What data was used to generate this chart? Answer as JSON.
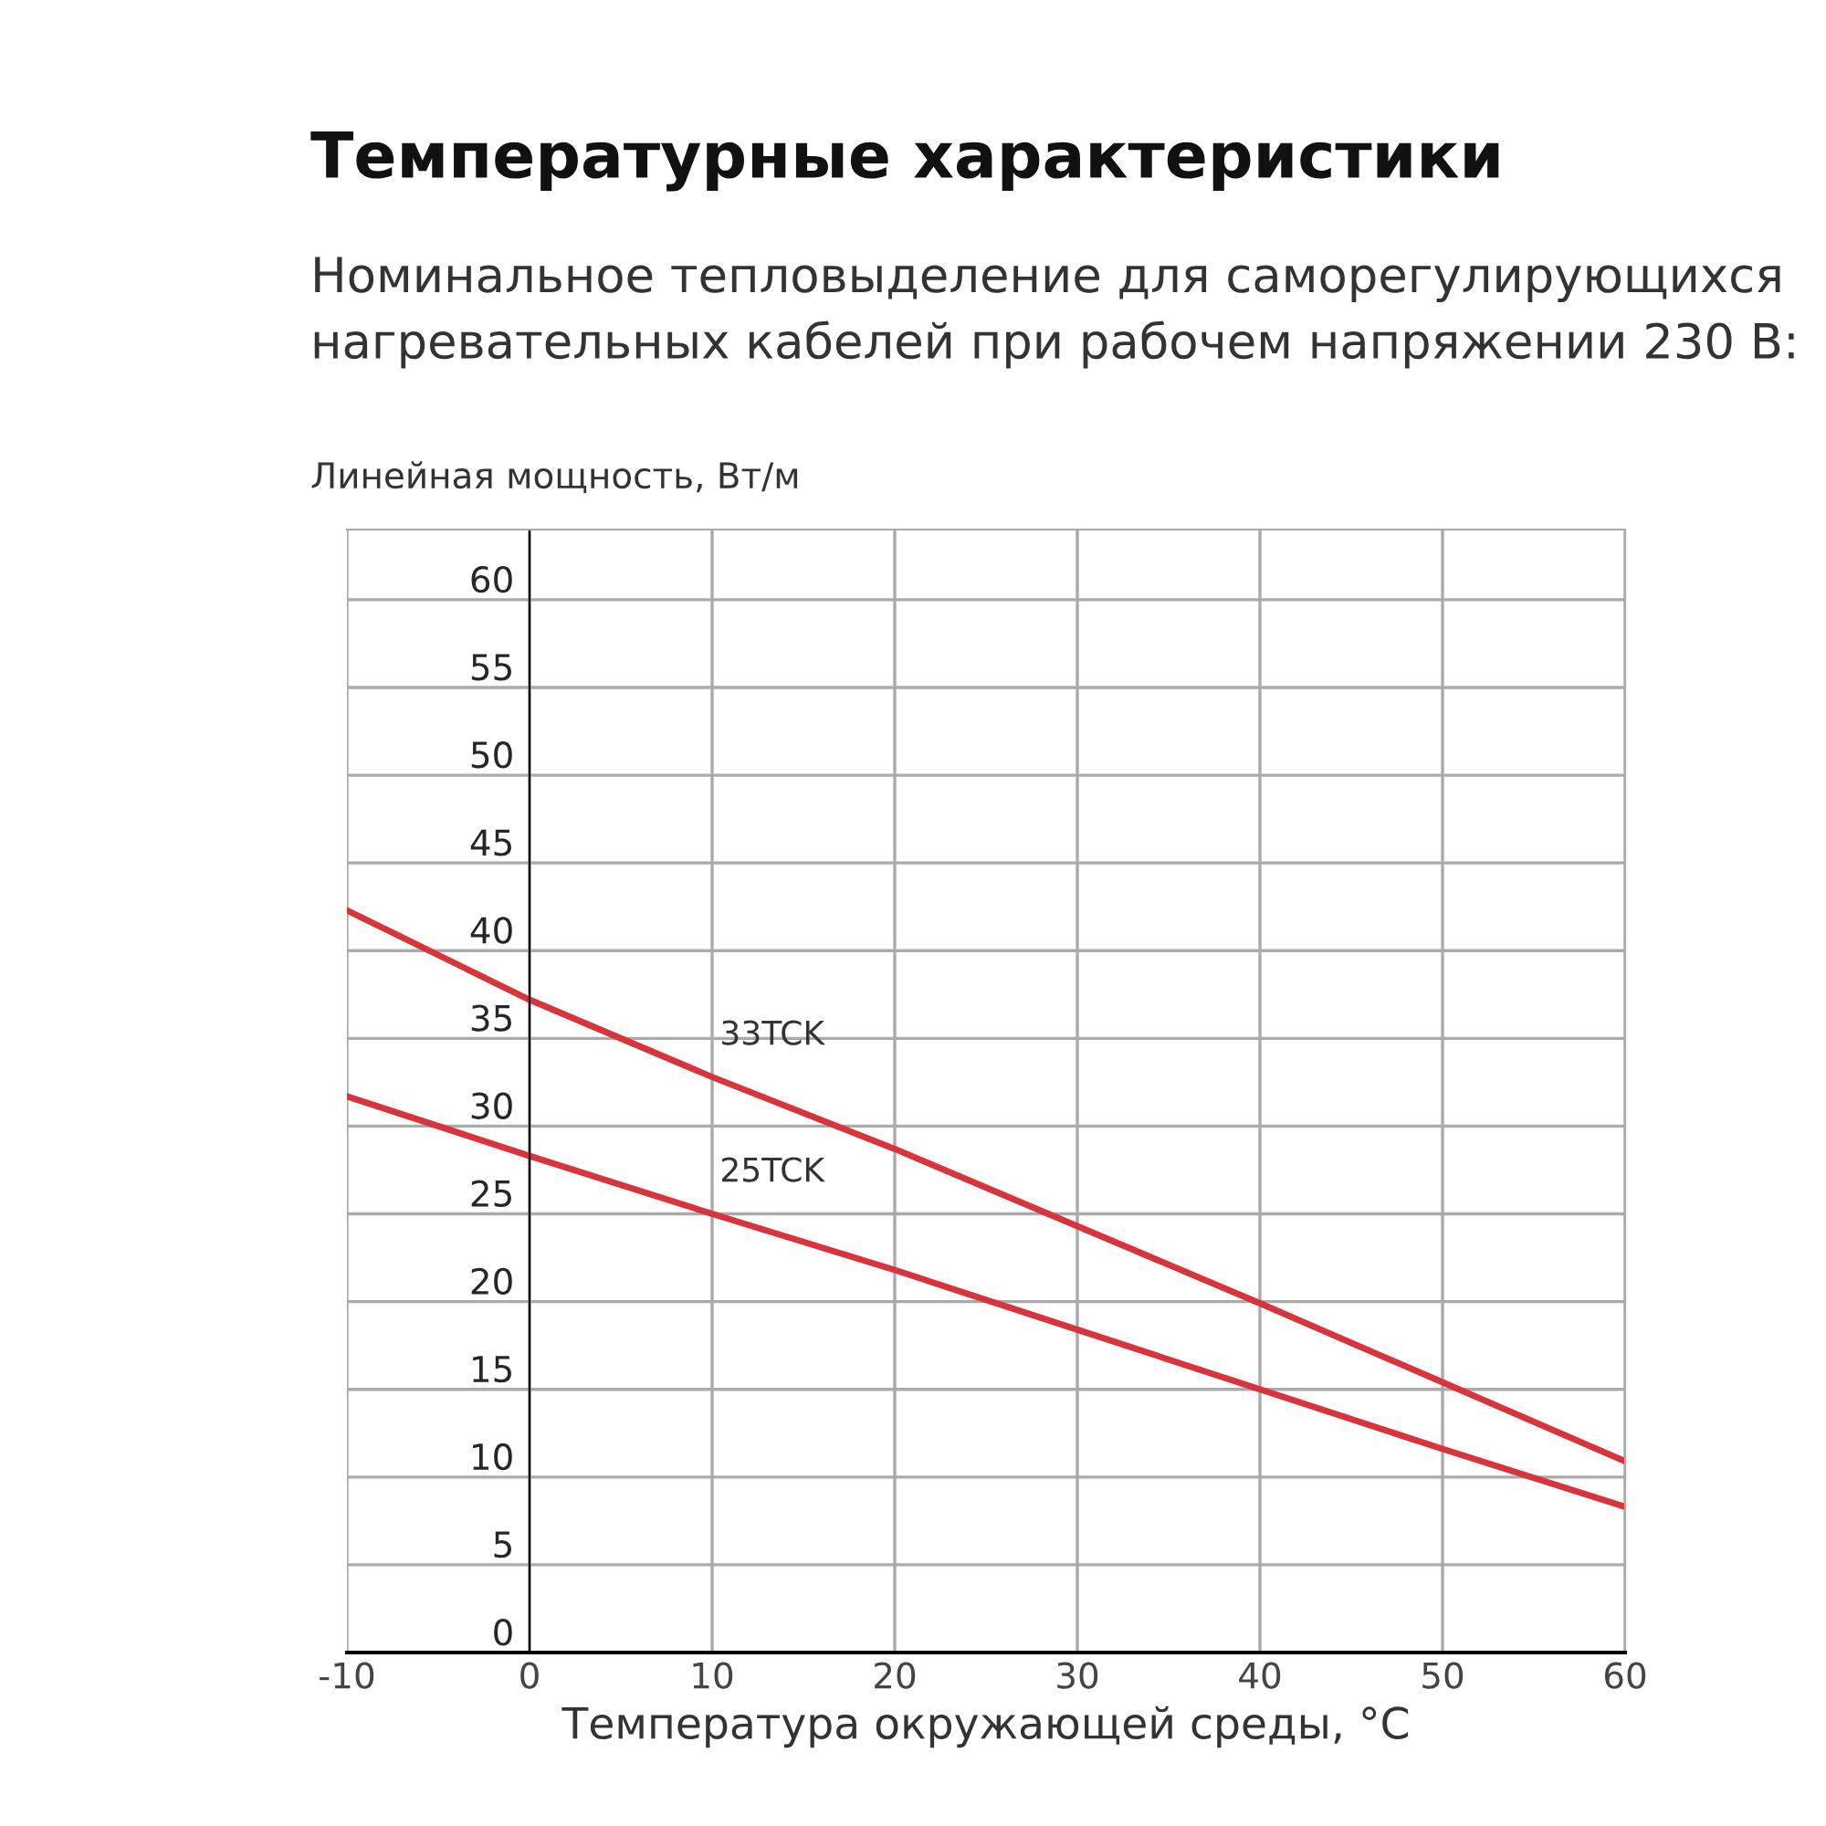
{
  "chart_data": {
    "type": "line",
    "title": "Температурные характеристики",
    "subtitle": "Номинальное тепловыделение для саморегулирующихся нагревательных кабелей при рабочем напряжении 230 В:",
    "ylabel": "Линейная мощность, Вт/м",
    "xlabel": "Температура окружающей среды, °C",
    "x": [
      -10,
      0,
      10,
      20,
      30,
      40,
      50,
      60
    ],
    "series": [
      {
        "name": "33TCK",
        "color": "#d7343c",
        "values": [
          42.3,
          37.2,
          32.8,
          28.7,
          24.3,
          19.9,
          15.4,
          10.9
        ]
      },
      {
        "name": "25TCK",
        "color": "#d7343c",
        "values": [
          31.7,
          28.3,
          25.0,
          21.8,
          18.4,
          15.0,
          11.6,
          8.3
        ]
      }
    ],
    "xlim": [
      -10,
      60
    ],
    "xticks": [
      -10,
      0,
      10,
      20,
      30,
      40,
      50,
      60
    ],
    "ylim": [
      0,
      64
    ],
    "yticks": [
      0,
      5,
      10,
      15,
      20,
      25,
      30,
      35,
      40,
      45,
      50,
      55,
      60
    ],
    "grid": true,
    "legend": false,
    "marker": "none",
    "line_style": "solid"
  }
}
